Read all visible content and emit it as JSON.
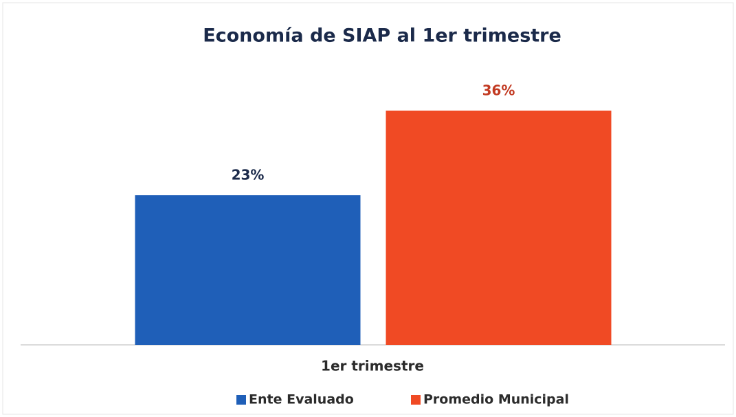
{
  "chart_data": {
    "type": "bar",
    "title": "Economía de SIAP al 1er trimestre",
    "categories": [
      "1er trimestre"
    ],
    "series": [
      {
        "name": "Ente Evaluado",
        "color": "#1f5fb8",
        "values": [
          23
        ],
        "value_labels": [
          "23%"
        ]
      },
      {
        "name": "Promedio Municipal",
        "color": "#f04a24",
        "values": [
          36
        ],
        "value_labels": [
          "36%"
        ]
      }
    ],
    "legend": "bottom"
  }
}
